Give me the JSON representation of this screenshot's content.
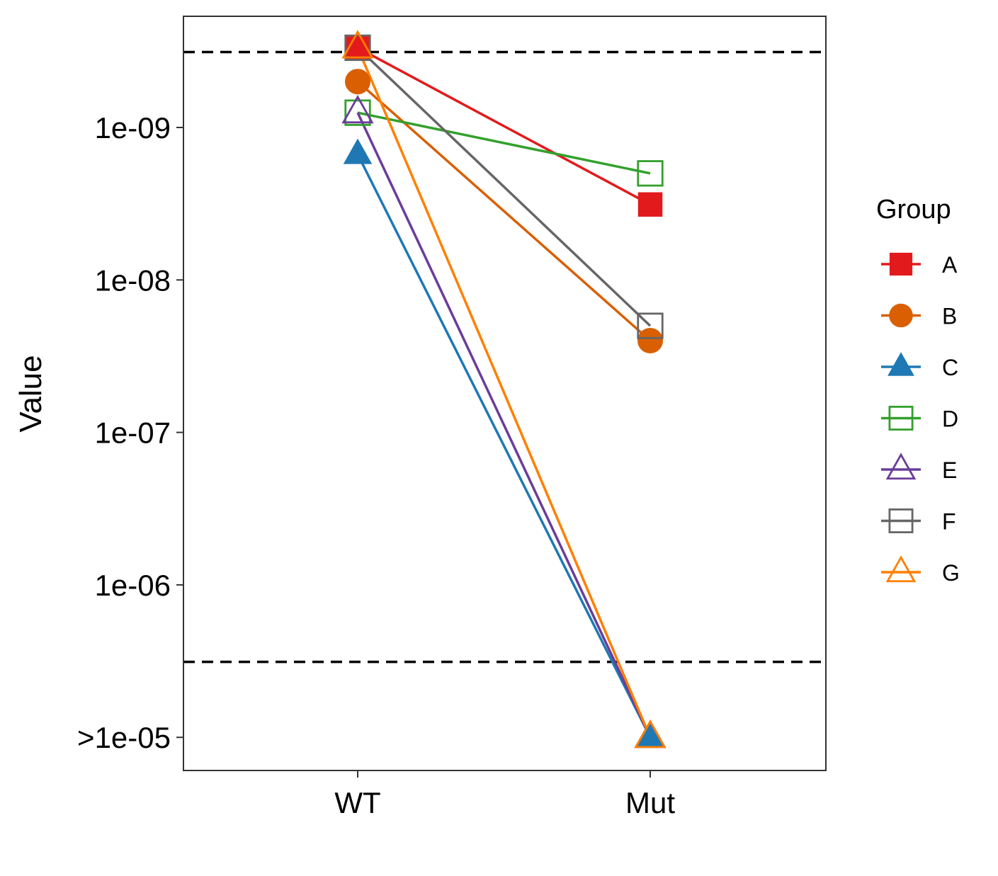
{
  "chart_data": {
    "type": "line",
    "categories": [
      "WT",
      "Mut"
    ],
    "ylabel": "Value",
    "xlabel": "",
    "y_scale": "log",
    "y_reversed": true,
    "ylim": [
      3.2e-10,
      1.7e-05
    ],
    "y_ticks": [
      1e-09,
      1e-08,
      1e-07,
      1e-06,
      1e-05
    ],
    "y_tick_labels": [
      "1e-09",
      "1e-08",
      "1e-07",
      "1e-06",
      ">1e-05"
    ],
    "reference_lines": [
      {
        "y": 3.2e-10,
        "style": "dashed",
        "color": "#000000"
      },
      {
        "y": 3.2e-06,
        "style": "dashed",
        "color": "#000000"
      }
    ],
    "grid": false,
    "legend": {
      "title": "Group",
      "position": "right"
    },
    "series": [
      {
        "name": "A",
        "values": [
          3e-10,
          3.2e-09
        ],
        "color": "#e31a1c",
        "marker": "square-filled"
      },
      {
        "name": "B",
        "values": [
          5e-10,
          2.5e-08
        ],
        "color": "#d95f02",
        "marker": "circle-filled"
      },
      {
        "name": "C",
        "values": [
          1.5e-09,
          1e-05
        ],
        "color": "#1f78b4",
        "marker": "triangle-filled"
      },
      {
        "name": "D",
        "values": [
          8e-10,
          2e-09
        ],
        "color": "#33a02c",
        "marker": "square-open"
      },
      {
        "name": "E",
        "values": [
          8e-10,
          1e-05
        ],
        "color": "#6a3d9a",
        "marker": "triangle-open"
      },
      {
        "name": "F",
        "values": [
          3e-10,
          2e-08
        ],
        "color": "#666666",
        "marker": "square-open"
      },
      {
        "name": "G",
        "values": [
          3e-10,
          1e-05
        ],
        "color": "#ff7f00",
        "marker": "triangle-open"
      }
    ]
  }
}
